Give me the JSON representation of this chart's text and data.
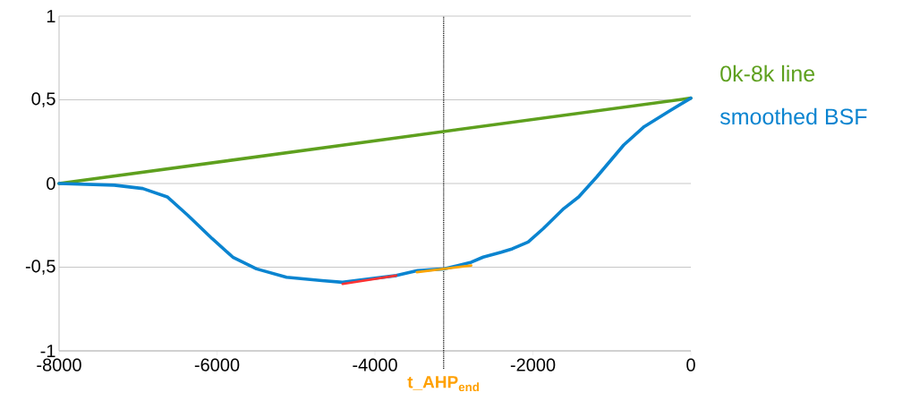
{
  "chart_data": {
    "type": "line",
    "xlim": [
      -8000,
      0
    ],
    "ylim": [
      -1,
      1
    ],
    "xticks": [
      -8000,
      -6000,
      -4000,
      -2000,
      0
    ],
    "yticks": [
      -1,
      {
        "value": -0.5,
        "label": "-0,5"
      },
      0,
      {
        "value": 0.5,
        "label": "0,5"
      },
      1
    ],
    "grid": "y",
    "legend": "right",
    "marker": "none",
    "line_style": "solid",
    "series": [
      {
        "name": "0k-8k line",
        "color": "#5ea01e",
        "x": [
          -8000,
          0
        ],
        "values": [
          0,
          0.51
        ]
      },
      {
        "name": "smoothed BSF",
        "color": "#0a84d0",
        "x": [
          -8000,
          -7300,
          -6940,
          -6630,
          -6370,
          -6060,
          -5800,
          -5500,
          -5120,
          -4670,
          -4410,
          -3730,
          -3460,
          -3120,
          -2780,
          -2630,
          -2400,
          -2260,
          -2060,
          -1870,
          -1610,
          -1420,
          -1190,
          -850,
          -590,
          -280,
          0
        ],
        "values": [
          0,
          -0.01,
          -0.03,
          -0.08,
          -0.19,
          -0.33,
          -0.44,
          -0.51,
          -0.56,
          -0.58,
          -0.59,
          -0.55,
          -0.52,
          -0.51,
          -0.47,
          -0.44,
          -0.41,
          -0.39,
          -0.35,
          -0.27,
          -0.15,
          -0.08,
          0.04,
          0.23,
          0.34,
          0.43,
          0.51
        ]
      },
      {
        "color": "#ff3333",
        "x": [
          -4410,
          -3730
        ],
        "values": [
          -0.6,
          -0.55
        ]
      },
      {
        "color": "#ffa500",
        "x": [
          -3470,
          -2780
        ],
        "values": [
          -0.53,
          -0.49
        ]
      }
    ],
    "ref_lines": [
      {
        "axis": "x",
        "value": -3130,
        "label": "t_AHP$_{end}$",
        "color": "#000000",
        "line_style": "dotted"
      }
    ]
  }
}
